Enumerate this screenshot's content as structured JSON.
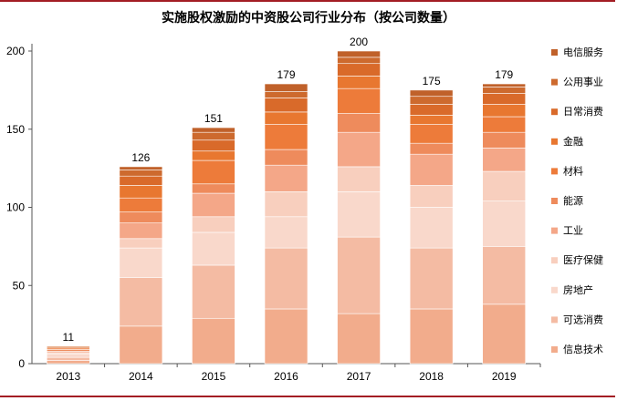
{
  "chart_data": {
    "type": "bar",
    "stacked": true,
    "title": "实施股权激励的中资股公司行业分布（按公司数量）",
    "xlabel": "",
    "ylabel": "",
    "categories": [
      "2013",
      "2014",
      "2015",
      "2016",
      "2017",
      "2018",
      "2019"
    ],
    "ylim": [
      0,
      200
    ],
    "yticks": [
      0,
      50,
      100,
      150,
      200
    ],
    "grid": false,
    "legend_position": "right",
    "totals": [
      11,
      126,
      151,
      179,
      200,
      175,
      179
    ],
    "series": [
      {
        "name": "信息技术",
        "color": "#f2ac8c",
        "values": [
          2,
          24,
          29,
          35,
          32,
          35,
          38
        ]
      },
      {
        "name": "可选消费",
        "color": "#f4bba3",
        "values": [
          2,
          31,
          34,
          39,
          49,
          39,
          37
        ]
      },
      {
        "name": "房地产",
        "color": "#f9d8cb",
        "values": [
          2,
          19,
          21,
          20,
          29,
          26,
          29
        ]
      },
      {
        "name": "医疗保健",
        "color": "#f8cfbe",
        "values": [
          1,
          6,
          10,
          16,
          16,
          14,
          19
        ]
      },
      {
        "name": "工业",
        "color": "#f4a788",
        "values": [
          1,
          10,
          15,
          17,
          22,
          20,
          15
        ]
      },
      {
        "name": "能源",
        "color": "#ee8b5c",
        "values": [
          1,
          7,
          6,
          10,
          12,
          7,
          10
        ]
      },
      {
        "name": "材料",
        "color": "#ed7b3a",
        "values": [
          1,
          9,
          15,
          16,
          16,
          12,
          10
        ]
      },
      {
        "name": "金融",
        "color": "#e87730",
        "values": [
          0,
          8,
          6,
          8,
          8,
          6,
          8
        ]
      },
      {
        "name": "日常消费",
        "color": "#d96a2a",
        "values": [
          1,
          6,
          7,
          9,
          8,
          7,
          7
        ]
      },
      {
        "name": "公用事业",
        "color": "#cd6a2e",
        "values": [
          0,
          4,
          5,
          4,
          4,
          5,
          4
        ]
      },
      {
        "name": "电信服务",
        "color": "#c0612a",
        "values": [
          0,
          2,
          3,
          5,
          4,
          4,
          2
        ]
      }
    ]
  }
}
